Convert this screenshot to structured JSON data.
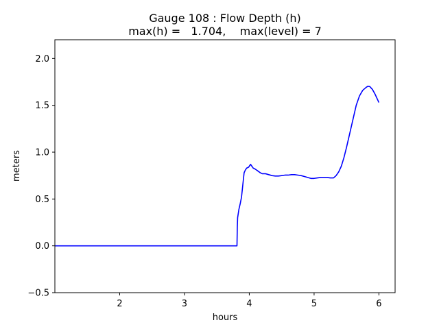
{
  "chart_data": {
    "type": "line",
    "title_line1": "Gauge 108 : Flow Depth (h)",
    "title_line2": "max(h) =   1.704,    max(level) = 7",
    "xlabel": "hours",
    "ylabel": "meters",
    "xlim": [
      1.0,
      6.25
    ],
    "ylim": [
      -0.5,
      2.2
    ],
    "xticks": [
      2,
      3,
      4,
      5,
      6
    ],
    "yticks": [
      -0.5,
      0.0,
      0.5,
      1.0,
      1.5,
      2.0
    ],
    "ytick_labels": [
      "−0.5",
      "0.0",
      "0.5",
      "1.0",
      "1.5",
      "2.0"
    ],
    "grid": false,
    "series": [
      {
        "color": "#0000ff",
        "x": [
          1.0,
          2.0,
          3.0,
          3.5,
          3.81,
          3.815,
          3.82,
          3.84,
          3.86,
          3.88,
          3.9,
          3.92,
          3.94,
          3.96,
          3.99,
          4.01,
          4.02,
          4.04,
          4.06,
          4.09,
          4.13,
          4.17,
          4.2,
          4.25,
          4.3,
          4.35,
          4.4,
          4.45,
          4.5,
          4.55,
          4.6,
          4.65,
          4.7,
          4.75,
          4.8,
          4.85,
          4.9,
          4.95,
          5.0,
          5.05,
          5.1,
          5.15,
          5.2,
          5.25,
          5.3,
          5.34,
          5.38,
          5.42,
          5.46,
          5.5,
          5.55,
          5.6,
          5.65,
          5.7,
          5.75,
          5.8,
          5.83,
          5.86,
          5.9,
          5.94,
          5.98,
          6.0
        ],
        "y": [
          0.0,
          0.0,
          0.0,
          0.0,
          0.0,
          0.2,
          0.3,
          0.39,
          0.45,
          0.52,
          0.65,
          0.78,
          0.81,
          0.83,
          0.84,
          0.86,
          0.87,
          0.85,
          0.83,
          0.82,
          0.8,
          0.78,
          0.77,
          0.77,
          0.76,
          0.75,
          0.745,
          0.745,
          0.75,
          0.755,
          0.755,
          0.76,
          0.76,
          0.755,
          0.75,
          0.74,
          0.73,
          0.72,
          0.72,
          0.725,
          0.73,
          0.73,
          0.73,
          0.725,
          0.725,
          0.75,
          0.79,
          0.85,
          0.94,
          1.05,
          1.2,
          1.35,
          1.5,
          1.6,
          1.66,
          1.69,
          1.704,
          1.7,
          1.67,
          1.62,
          1.56,
          1.53
        ]
      }
    ]
  }
}
